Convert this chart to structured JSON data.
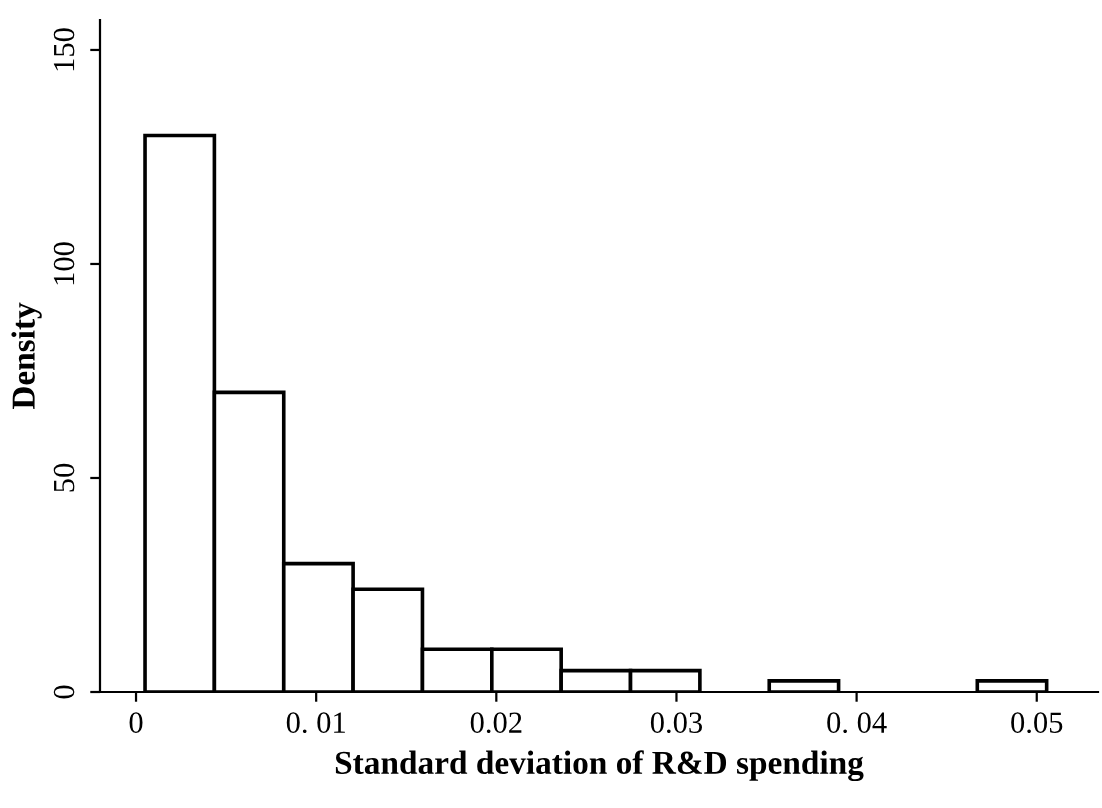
{
  "chart_data": {
    "type": "histogram",
    "xlabel": "Standard deviation of R&D spending",
    "ylabel": "Density",
    "bins": [
      0.0005,
      0.00435,
      0.0082,
      0.01205,
      0.0159,
      0.01975,
      0.0236,
      0.02745,
      0.0313,
      0.03515,
      0.039,
      0.04285,
      0.0467,
      0.05055
    ],
    "values": [
      130,
      70,
      30,
      24,
      10,
      10,
      5,
      5,
      0,
      2.6,
      0,
      0,
      2.6
    ],
    "color": "#ffffff",
    "xlim": [
      -0.002,
      0.0534
    ],
    "ylim": [
      0,
      157
    ],
    "xticks": [
      0,
      {
        "value": 0.01,
        "label": "0. 01"
      },
      0.02,
      0.03,
      {
        "value": 0.04,
        "label": "0. 04"
      },
      0.05
    ],
    "yticks": [
      0,
      50,
      100,
      150
    ],
    "grid": false
  }
}
